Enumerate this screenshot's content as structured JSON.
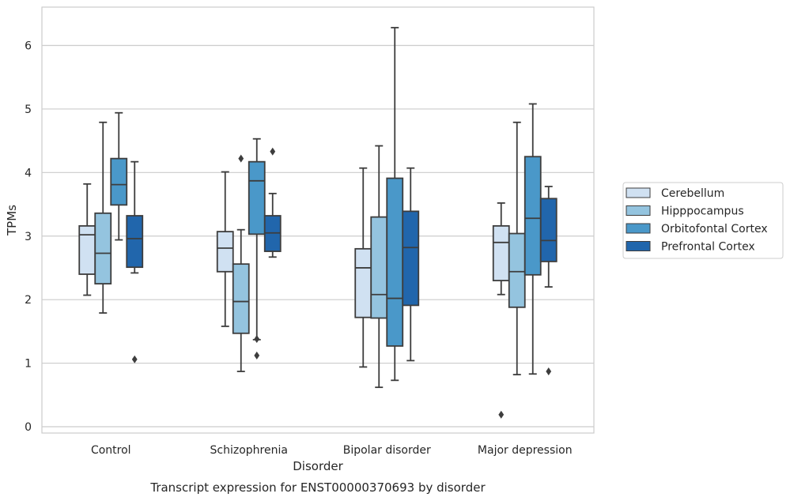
{
  "chart_data": {
    "type": "box",
    "xlabel": "Disorder",
    "ylabel": "TPMs",
    "caption": "Transcript expression for ENST00000370693 by disorder",
    "ylim": [
      -0.1,
      6.6
    ],
    "yticks": [
      0,
      1,
      2,
      3,
      4,
      5,
      6
    ],
    "grid": true,
    "legend_position": "right",
    "categories": [
      "Control",
      "Schizophrenia",
      "Bipolar disorder",
      "Major depression"
    ],
    "series": [
      {
        "name": "Cerebellum",
        "color": "#d0e1f2",
        "boxes": [
          {
            "whislo": 2.07,
            "q1": 2.4,
            "med": 3.02,
            "q3": 3.16,
            "whishi": 3.82,
            "fliers": []
          },
          {
            "whislo": 1.58,
            "q1": 2.44,
            "med": 2.81,
            "q3": 3.07,
            "whishi": 4.01,
            "fliers": []
          },
          {
            "whislo": 0.94,
            "q1": 1.72,
            "med": 2.5,
            "q3": 2.8,
            "whishi": 4.07,
            "fliers": []
          },
          {
            "whislo": 2.08,
            "q1": 2.3,
            "med": 2.9,
            "q3": 3.16,
            "whishi": 3.52,
            "fliers": [
              0.19
            ]
          }
        ]
      },
      {
        "name": "Hipppocampus",
        "color": "#94c4df",
        "boxes": [
          {
            "whislo": 1.79,
            "q1": 2.25,
            "med": 2.73,
            "q3": 3.36,
            "whishi": 4.79,
            "fliers": []
          },
          {
            "whislo": 0.87,
            "q1": 1.47,
            "med": 1.97,
            "q3": 2.56,
            "whishi": 3.1,
            "fliers": [
              4.22
            ]
          },
          {
            "whislo": 0.62,
            "q1": 1.71,
            "med": 2.08,
            "q3": 3.3,
            "whishi": 4.42,
            "fliers": []
          },
          {
            "whislo": 0.82,
            "q1": 1.88,
            "med": 2.44,
            "q3": 3.04,
            "whishi": 4.79,
            "fliers": []
          }
        ]
      },
      {
        "name": "Orbitofontal Cortex",
        "color": "#4a98c9",
        "boxes": [
          {
            "whislo": 2.94,
            "q1": 3.49,
            "med": 3.81,
            "q3": 4.22,
            "whishi": 4.94,
            "fliers": []
          },
          {
            "whislo": 1.37,
            "q1": 3.03,
            "med": 3.87,
            "q3": 4.17,
            "whishi": 4.53,
            "fliers": [
              1.12,
              1.38
            ]
          },
          {
            "whislo": 0.73,
            "q1": 1.27,
            "med": 2.02,
            "q3": 3.91,
            "whishi": 6.28,
            "fliers": []
          },
          {
            "whislo": 0.83,
            "q1": 2.39,
            "med": 3.28,
            "q3": 4.25,
            "whishi": 5.08,
            "fliers": []
          }
        ]
      },
      {
        "name": "Prefrontal Cortex",
        "color": "#2166ac",
        "boxes": [
          {
            "whislo": 2.42,
            "q1": 2.51,
            "med": 2.96,
            "q3": 3.32,
            "whishi": 4.17,
            "fliers": [
              1.06
            ]
          },
          {
            "whislo": 2.67,
            "q1": 2.76,
            "med": 3.05,
            "q3": 3.32,
            "whishi": 3.67,
            "fliers": [
              4.33
            ]
          },
          {
            "whislo": 1.04,
            "q1": 1.91,
            "med": 2.82,
            "q3": 3.39,
            "whishi": 4.07,
            "fliers": []
          },
          {
            "whislo": 2.2,
            "q1": 2.6,
            "med": 2.93,
            "q3": 3.59,
            "whishi": 3.78,
            "fliers": [
              0.87
            ]
          }
        ]
      }
    ]
  }
}
